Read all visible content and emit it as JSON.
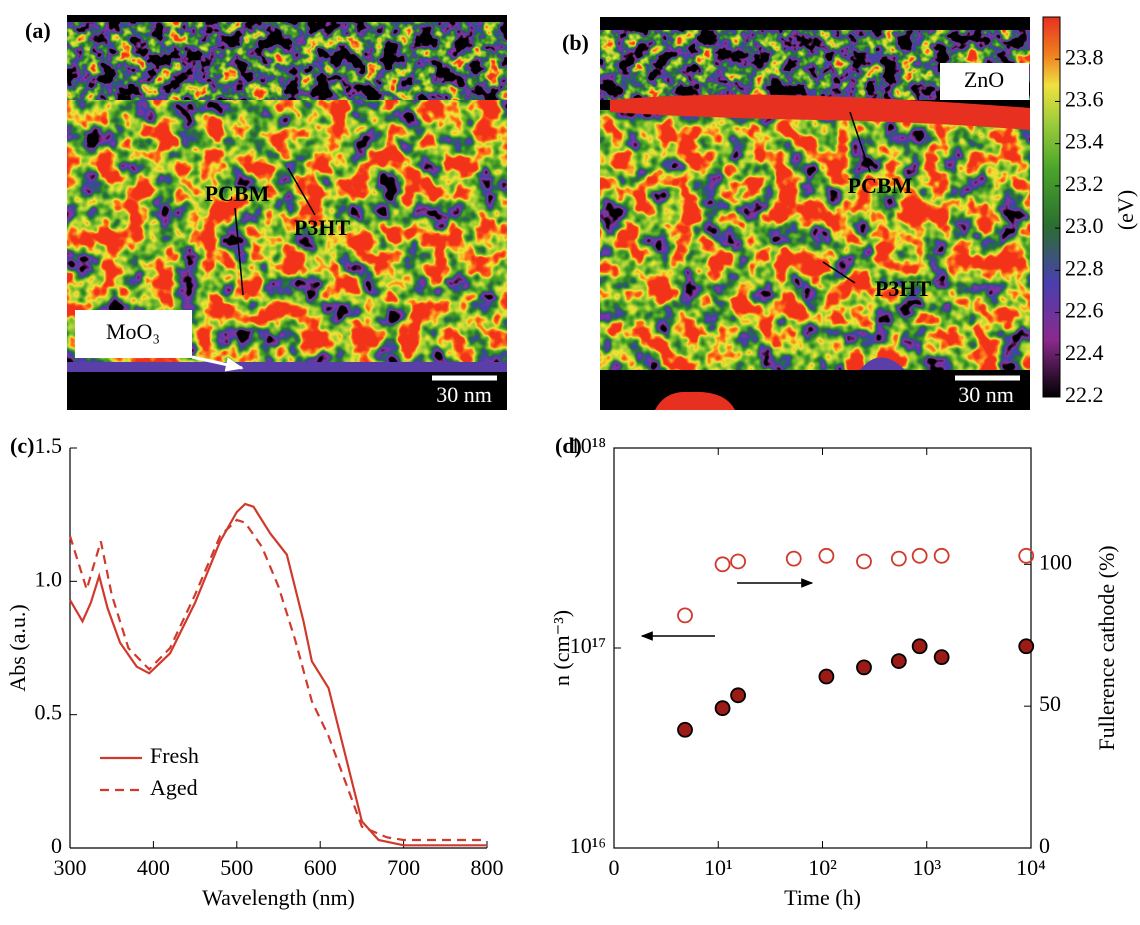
{
  "panels": {
    "a": {
      "label": "(a)",
      "pcbm": "PCBM",
      "p3ht": "P3HT",
      "moo3": "MoO₃",
      "scale": "30 nm"
    },
    "b": {
      "label": "(b)",
      "zno": "ZnO",
      "pcbm": "PCBM",
      "p3ht": "P3HT",
      "scale": "30 nm"
    }
  },
  "colorbar": {
    "label": "(eV)",
    "lim": [
      22.2,
      24.0
    ],
    "ticks": [
      22.2,
      22.4,
      22.6,
      22.8,
      {
        "value": 23,
        "label": "23.0"
      },
      23.2,
      23.4,
      23.6,
      23.8
    ]
  },
  "chart_data": [
    {
      "type": "line",
      "panel": "(c)",
      "xlabel": "Wavelength (nm)",
      "ylabel": "Abs (a.u.)",
      "xlim": [
        300,
        800
      ],
      "ylim": [
        0,
        1.5
      ],
      "xticks": [
        300,
        400,
        500,
        600,
        700,
        800
      ],
      "yticks": [
        0,
        0.5,
        {
          "value": 1,
          "label": "1.0"
        },
        1.5
      ],
      "box": false,
      "legend": "lower left",
      "series": [
        {
          "name": "Fresh",
          "color": "#d0392b",
          "linestyle": "solid",
          "x": [
            300,
            315,
            325,
            335,
            345,
            360,
            380,
            395,
            420,
            450,
            480,
            500,
            510,
            520,
            540,
            560,
            580,
            590,
            610,
            630,
            650,
            670,
            700,
            800
          ],
          "values": [
            0.93,
            0.85,
            0.92,
            1.02,
            0.9,
            0.77,
            0.68,
            0.655,
            0.73,
            0.92,
            1.15,
            1.26,
            1.29,
            1.28,
            1.18,
            1.1,
            0.85,
            0.7,
            0.6,
            0.35,
            0.1,
            0.03,
            0.01,
            0.01
          ]
        },
        {
          "name": "Aged",
          "color": "#d0392b",
          "linestyle": "dashed",
          "x": [
            300,
            320,
            337,
            350,
            370,
            395,
            420,
            450,
            480,
            500,
            510,
            530,
            550,
            570,
            590,
            610,
            630,
            650,
            680,
            700,
            800
          ],
          "values": [
            1.17,
            0.97,
            1.15,
            0.95,
            0.75,
            0.67,
            0.75,
            0.95,
            1.17,
            1.23,
            1.22,
            1.13,
            0.98,
            0.78,
            0.55,
            0.42,
            0.25,
            0.08,
            0.04,
            0.03,
            0.03
          ]
        }
      ]
    },
    {
      "type": "scatter",
      "panel": "(d)",
      "xlabel": "Time (h)",
      "ylabel": "n (cm⁻³)",
      "y2label": "Fullerence cathode (%)",
      "xscale": "log",
      "yscale": "log",
      "xlim": [
        1,
        10000
      ],
      "ylim": [
        1e+16,
        1e+18
      ],
      "y2lim": [
        0,
        141
      ],
      "xticks": [
        {
          "value": 1,
          "label": "0"
        },
        {
          "value": 10,
          "label": "10¹"
        },
        {
          "value": 100,
          "label": "10²"
        },
        {
          "value": 1000,
          "label": "10³"
        },
        {
          "value": 10000,
          "label": "10⁴"
        }
      ],
      "yticks": [
        {
          "value": 1e+16,
          "label": "10¹⁶"
        },
        {
          "value": 1e+17,
          "label": "10¹⁷"
        },
        {
          "value": 1e+18,
          "label": "10¹⁸"
        }
      ],
      "y2ticks": [
        0,
        50,
        100
      ],
      "box": true,
      "series": [
        {
          "color": "#000000",
          "fill": "#9b1c16",
          "axis": "y",
          "x": [
            4.8,
            11,
            15.5,
            109,
            250,
            540,
            855,
            1390,
            9000
          ],
          "values": [
            3.9e+16,
            5e+16,
            5.8e+16,
            7.2e+16,
            8e+16,
            8.6e+16,
            1.02e+17,
            9e+16,
            1.02e+17
          ]
        },
        {
          "color": "#d0392b",
          "fill": "none",
          "axis": "y2",
          "x": [
            4.8,
            11,
            15.5,
            53,
            109,
            250,
            540,
            855,
            1390,
            9000
          ],
          "values": [
            82,
            100,
            101,
            102,
            103,
            101,
            102,
            103,
            103,
            103
          ]
        }
      ]
    }
  ]
}
